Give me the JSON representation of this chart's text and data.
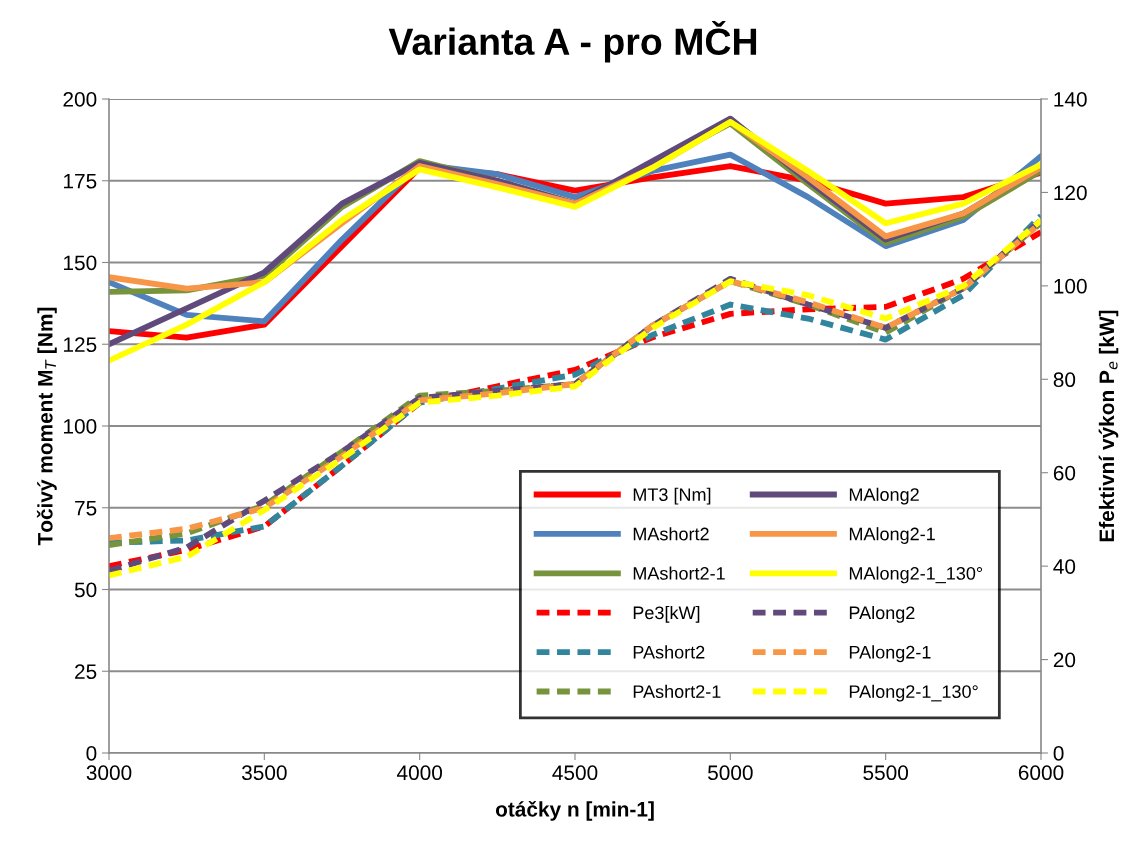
{
  "chart_data": {
    "type": "line",
    "title": "Varianta A - pro MČH",
    "xlabel": "otáčky n [min-1]",
    "ylabel": "Točivý moment M$_{T}$ [Nm]",
    "y2label": "Efektivní výkon P$_{e}$ [kW]",
    "x": [
      3000,
      3250,
      3500,
      3750,
      4000,
      4250,
      4500,
      4750,
      5000,
      5250,
      5500,
      5750,
      6000
    ],
    "xlim": [
      3000,
      6000
    ],
    "xticks": [
      3000,
      3500,
      4000,
      4500,
      5000,
      5500,
      6000
    ],
    "ylim": [
      0,
      200
    ],
    "yticks": [
      0,
      25,
      50,
      75,
      100,
      125,
      150,
      175,
      200
    ],
    "y2lim": [
      0,
      140
    ],
    "y2ticks": [
      0,
      20,
      40,
      60,
      80,
      100,
      120,
      140
    ],
    "grid": "y",
    "legend": "bottom right",
    "line_style": "solid",
    "marker": "none",
    "series": [
      {
        "name": "MT3 [Nm]",
        "color": "#ff0000",
        "values": [
          129,
          127,
          131,
          155,
          179,
          177,
          172,
          176,
          179.5,
          175,
          168,
          170,
          177.5
        ]
      },
      {
        "name": "MAshort2",
        "color": "#4f81bd",
        "values": [
          144,
          134,
          132,
          157,
          180,
          177,
          170,
          178,
          183,
          170,
          155,
          163,
          182.5
        ]
      },
      {
        "name": "MAshort2-1",
        "color": "#77933c",
        "values": [
          141,
          141.5,
          146,
          167,
          181,
          175,
          168,
          180,
          192.5,
          174,
          156,
          164,
          178
        ]
      },
      {
        "name": "Pe3[kW]",
        "color": "#ff0000",
        "axis": "y2",
        "line_style": "dashed",
        "values": [
          40,
          43.5,
          48.5,
          61.5,
          75,
          78.5,
          82,
          89,
          94,
          95,
          95.5,
          101.5,
          111.5
        ]
      },
      {
        "name": "PAshort2",
        "color": "#31859c",
        "axis": "y2",
        "line_style": "dashed",
        "values": [
          45,
          45.5,
          48.5,
          61.5,
          75,
          78,
          81,
          89.5,
          96,
          93,
          88.5,
          98,
          115
        ]
      },
      {
        "name": "PAshort2-1",
        "color": "#77933c",
        "axis": "y2",
        "line_style": "dashed",
        "values": [
          44.5,
          47,
          53,
          64.5,
          76.5,
          77.5,
          79,
          91.5,
          101,
          96,
          90,
          99.5,
          113.5
        ]
      },
      {
        "name": "MAlong2",
        "color": "#604a7b",
        "values": [
          125,
          136,
          147,
          168,
          180.5,
          175,
          168,
          181,
          194,
          175,
          157,
          165,
          179
        ]
      },
      {
        "name": "MAlong2-1",
        "color": "#f79646",
        "values": [
          145.5,
          142,
          144,
          162,
          179.5,
          174,
          168,
          179,
          193,
          176,
          158,
          165,
          179
        ]
      },
      {
        "name": "MAlong2-1_130°",
        "color": "#ffff00",
        "values": [
          120,
          131,
          144,
          163,
          178.5,
          173,
          167,
          179,
          193,
          178,
          162,
          168,
          180
        ]
      },
      {
        "name": "PAlong2",
        "color": "#604a7b",
        "axis": "y2",
        "line_style": "dashed",
        "values": [
          39,
          44,
          54,
          64.5,
          76,
          77.5,
          79,
          91.5,
          101.5,
          96,
          91,
          99.5,
          114
        ]
      },
      {
        "name": "PAlong2-1",
        "color": "#f79646",
        "axis": "y2",
        "line_style": "dashed",
        "values": [
          46,
          48,
          52.5,
          63.5,
          75.5,
          77,
          79,
          91.5,
          101,
          96.5,
          91,
          99.5,
          113.5
        ]
      },
      {
        "name": "PAlong2-1_130°",
        "color": "#ffff00",
        "axis": "y2",
        "line_style": "dashed",
        "values": [
          38,
          42,
          52,
          63,
          75,
          76.5,
          78.5,
          91,
          101,
          98,
          93,
          100,
          114
        ]
      }
    ]
  }
}
